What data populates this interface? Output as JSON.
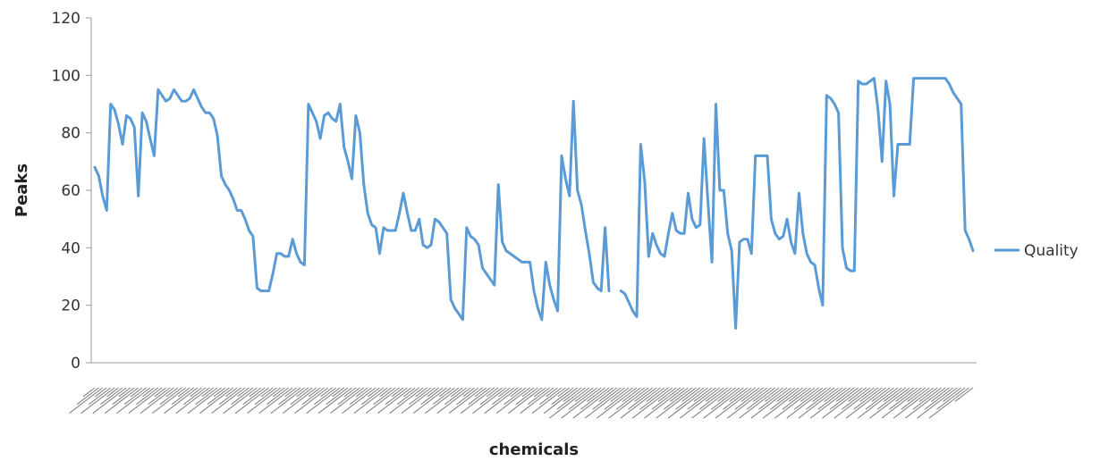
{
  "chart_data": {
    "type": "line",
    "title": "",
    "xlabel": "chemicals",
    "ylabel": "Peaks",
    "ylim": [
      0,
      120
    ],
    "yticks": [
      0,
      20,
      40,
      60,
      80,
      100,
      120
    ],
    "grid": false,
    "legend_position": "right",
    "series": [
      {
        "name": "Quality",
        "color": "#5b9bd5",
        "values": [
          68,
          65,
          58,
          53,
          90,
          88,
          83,
          76,
          86,
          85,
          82,
          58,
          87,
          84,
          78,
          72,
          95,
          93,
          91,
          92,
          95,
          93,
          91,
          91,
          92,
          95,
          92,
          89,
          87,
          87,
          85,
          79,
          65,
          62,
          60,
          57,
          53,
          53,
          50,
          46,
          44,
          26,
          25,
          25,
          25,
          31,
          38,
          38,
          37,
          37,
          43,
          38,
          35,
          34,
          90,
          87,
          84,
          78,
          86,
          87,
          85,
          84,
          90,
          75,
          70,
          64,
          86,
          80,
          62,
          52,
          48,
          47,
          38,
          47,
          46,
          46,
          46,
          52,
          59,
          52,
          46,
          46,
          50,
          41,
          40,
          41,
          50,
          49,
          47,
          45,
          22,
          19,
          17,
          15,
          47,
          44,
          43,
          41,
          33,
          31,
          29,
          27,
          62,
          42,
          39,
          38,
          37,
          36,
          35,
          35,
          35,
          25,
          19,
          15,
          35,
          27,
          22,
          18,
          72,
          64,
          58,
          91,
          60,
          55,
          46,
          38,
          28,
          26,
          25,
          47,
          25,
          null,
          null,
          25,
          24,
          21,
          18,
          16,
          76,
          63,
          37,
          45,
          41,
          38,
          37,
          45,
          52,
          46,
          45,
          45,
          59,
          50,
          47,
          48,
          78,
          56,
          35,
          90,
          60,
          60,
          45,
          39,
          12,
          42,
          43,
          43,
          38,
          72,
          72,
          72,
          72,
          50,
          45,
          43,
          44,
          50,
          42,
          38,
          59,
          45,
          38,
          35,
          34,
          26,
          20,
          93,
          92,
          90,
          87,
          40,
          33,
          32,
          32,
          98,
          97,
          97,
          98,
          99,
          88,
          70,
          98,
          90,
          58,
          76,
          76,
          76,
          76,
          99,
          99,
          99,
          99,
          99,
          99,
          99,
          99,
          99,
          97,
          94,
          92,
          90,
          46,
          43,
          39
        ]
      }
    ],
    "x_categories_note": ""
  }
}
